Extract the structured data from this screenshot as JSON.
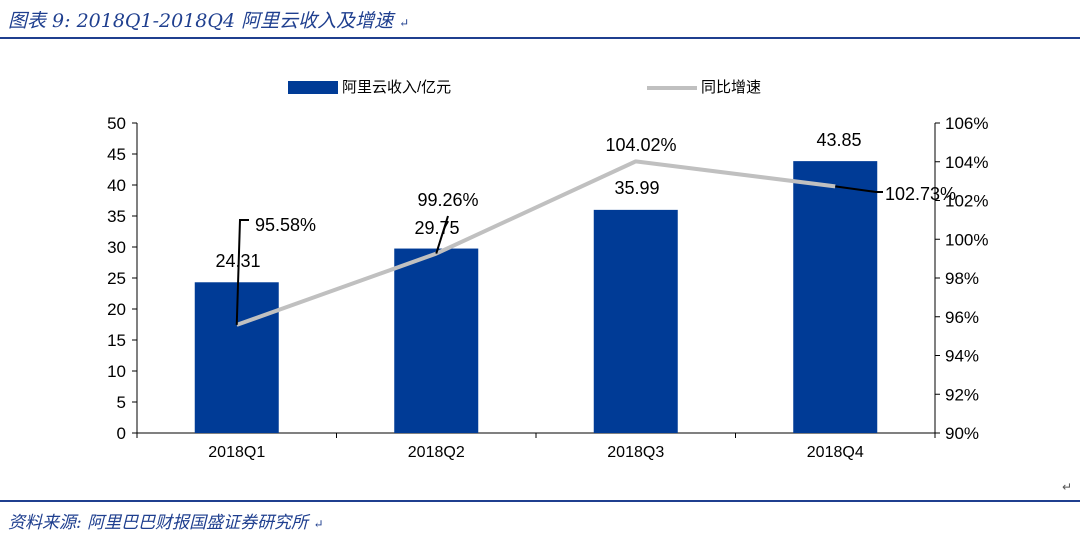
{
  "figure": {
    "title": "图表 9:  2018Q1-2018Q4 阿里云收入及增速",
    "source": "资料来源:  阿里巴巴财报国盛证券研究所",
    "return_mark": "↵"
  },
  "colors": {
    "bar": "#003b96",
    "line": "#c0c0c0",
    "leader": "#000000",
    "rule": "#1f3f8f",
    "axis": "#000000"
  },
  "chart_data": {
    "type": "bar",
    "categories": [
      "2018Q1",
      "2018Q2",
      "2018Q3",
      "2018Q4"
    ],
    "series": [
      {
        "name": "阿里云收入/亿元",
        "type": "bar",
        "axis": "left",
        "values": [
          24.31,
          29.75,
          35.99,
          43.85
        ],
        "labels": [
          "24.31",
          "29.75",
          "35.99",
          "43.85"
        ]
      },
      {
        "name": "同比增速",
        "type": "line",
        "axis": "right",
        "values": [
          95.58,
          99.26,
          104.02,
          102.73
        ],
        "labels": [
          "95.58%",
          "99.26%",
          "104.02%",
          "102.73%"
        ]
      }
    ],
    "y_left": {
      "min": 0,
      "max": 50,
      "step": 5,
      "ticks": [
        "0",
        "5",
        "10",
        "15",
        "20",
        "25",
        "30",
        "35",
        "40",
        "45",
        "50"
      ]
    },
    "y_right": {
      "min": 90,
      "max": 106,
      "step": 2,
      "ticks": [
        "90%",
        "92%",
        "94%",
        "96%",
        "98%",
        "100%",
        "102%",
        "104%",
        "106%"
      ]
    },
    "legend_position": "top",
    "grid": false
  }
}
